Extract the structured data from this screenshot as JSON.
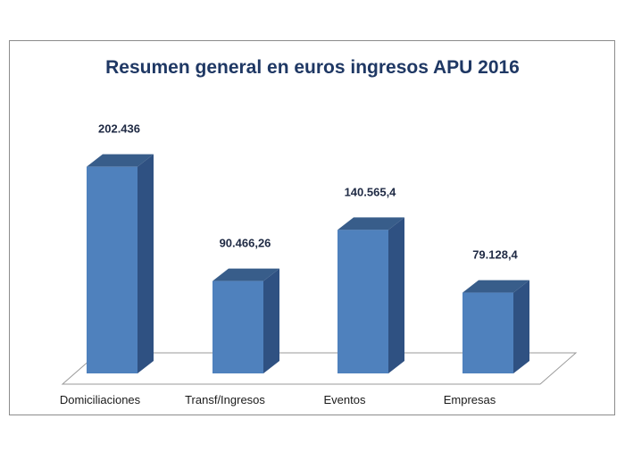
{
  "chart_data": {
    "type": "bar",
    "title": "Resumen general en euros ingresos APU 2016",
    "xlabel": "",
    "ylabel": "",
    "categories": [
      "Domiciliaciones",
      "Transf/Ingresos",
      "Eventos",
      "Empresas"
    ],
    "values": [
      202436,
      90466.26,
      140565.4,
      79128.4
    ],
    "value_labels": [
      "202.436",
      "90.466,26",
      "140.565,4",
      "79.128,4"
    ],
    "ylim": [
      0,
      210000
    ],
    "grid": false,
    "legend": "none",
    "bar_style": "3d-column",
    "colors": {
      "bar_front": "#4f81bd",
      "bar_side": "#2f5182",
      "bar_top": "#385d8a",
      "title": "#1f3864"
    }
  }
}
